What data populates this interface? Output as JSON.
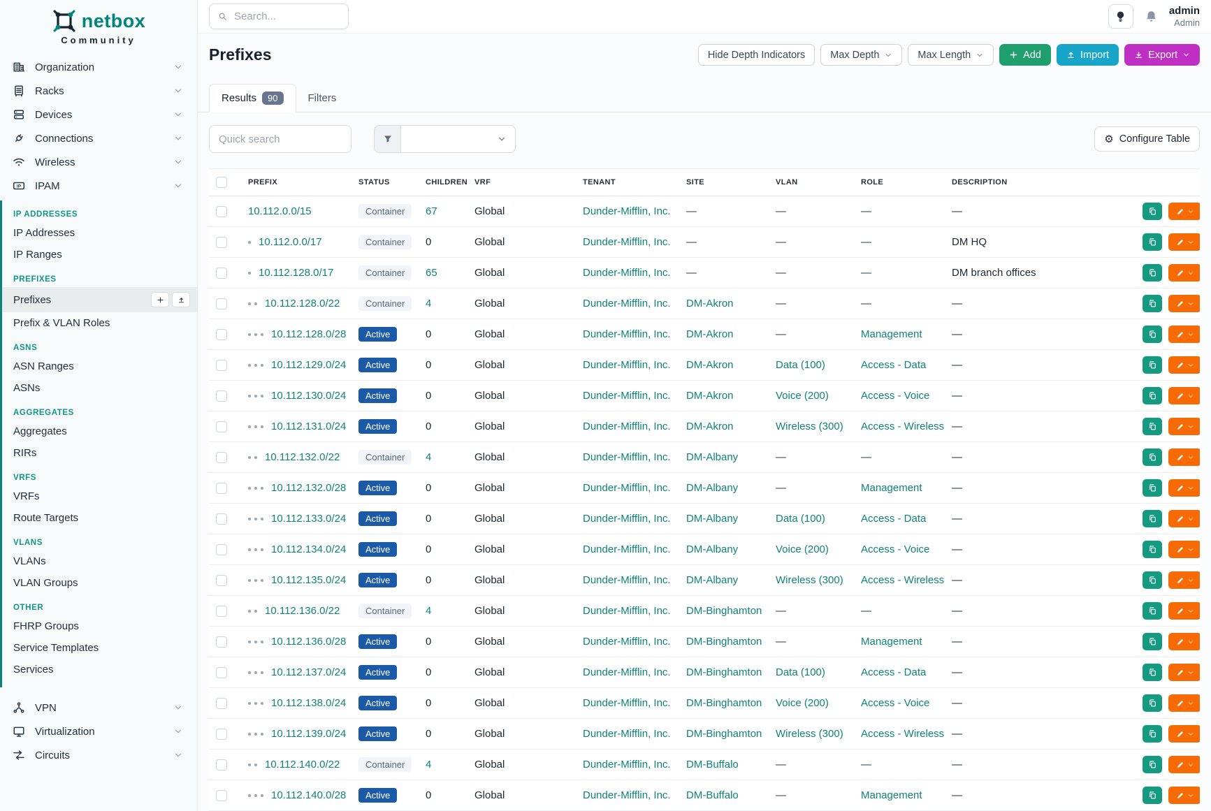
{
  "brand": {
    "name": "netbox",
    "subtitle": "Community"
  },
  "topbar": {
    "search_placeholder": "Search...",
    "user_name": "admin",
    "user_role": "Admin"
  },
  "sidebar": {
    "items_top": [
      {
        "label": "Organization",
        "icon": "building-icon"
      },
      {
        "label": "Racks",
        "icon": "rack-icon"
      },
      {
        "label": "Devices",
        "icon": "server-icon"
      },
      {
        "label": "Connections",
        "icon": "plug-icon"
      },
      {
        "label": "Wireless",
        "icon": "wifi-icon"
      },
      {
        "label": "IPAM",
        "icon": "ipam-icon"
      }
    ],
    "ipam_groups": [
      {
        "header": "IP ADDRESSES",
        "items": [
          "IP Addresses",
          "IP Ranges"
        ]
      },
      {
        "header": "PREFIXES",
        "items": [
          "Prefixes",
          "Prefix & VLAN Roles"
        ],
        "active_item": "Prefixes"
      },
      {
        "header": "ASNS",
        "items": [
          "ASN Ranges",
          "ASNs"
        ]
      },
      {
        "header": "AGGREGATES",
        "items": [
          "Aggregates",
          "RIRs"
        ]
      },
      {
        "header": "VRFS",
        "items": [
          "VRFs",
          "Route Targets"
        ]
      },
      {
        "header": "VLANS",
        "items": [
          "VLANs",
          "VLAN Groups"
        ]
      },
      {
        "header": "OTHER",
        "items": [
          "FHRP Groups",
          "Service Templates",
          "Services"
        ]
      }
    ],
    "items_bottom": [
      {
        "label": "VPN",
        "icon": "vpn-icon"
      },
      {
        "label": "Virtualization",
        "icon": "monitor-icon"
      },
      {
        "label": "Circuits",
        "icon": "circuits-icon"
      }
    ]
  },
  "page": {
    "title": "Prefixes",
    "toolbar": {
      "hide_depth": "Hide Depth Indicators",
      "max_depth": "Max Depth",
      "max_length": "Max Length",
      "add": "Add",
      "import": "Import",
      "export": "Export"
    },
    "tabs": [
      {
        "label": "Results",
        "badge": "90"
      },
      {
        "label": "Filters"
      }
    ],
    "quick_search_placeholder": "Quick search",
    "configure_table": "Configure Table"
  },
  "table": {
    "headers": [
      "PREFIX",
      "STATUS",
      "CHILDREN",
      "VRF",
      "TENANT",
      "SITE",
      "VLAN",
      "ROLE",
      "DESCRIPTION"
    ],
    "rows": [
      {
        "prefix": "10.112.0.0/15",
        "depth": 0,
        "status": "Container",
        "children": "67",
        "children_link": true,
        "vrf": "Global",
        "tenant": "Dunder-Mifflin, Inc.",
        "site": "—",
        "vlan": "—",
        "role": "—",
        "description": "—"
      },
      {
        "prefix": "10.112.0.0/17",
        "depth": 1,
        "status": "Container",
        "children": "0",
        "children_link": false,
        "vrf": "Global",
        "tenant": "Dunder-Mifflin, Inc.",
        "site": "—",
        "vlan": "—",
        "role": "—",
        "description": "DM HQ"
      },
      {
        "prefix": "10.112.128.0/17",
        "depth": 1,
        "status": "Container",
        "children": "65",
        "children_link": true,
        "vrf": "Global",
        "tenant": "Dunder-Mifflin, Inc.",
        "site": "—",
        "vlan": "—",
        "role": "—",
        "description": "DM branch offices"
      },
      {
        "prefix": "10.112.128.0/22",
        "depth": 2,
        "status": "Container",
        "children": "4",
        "children_link": true,
        "vrf": "Global",
        "tenant": "Dunder-Mifflin, Inc.",
        "site": "DM-Akron",
        "vlan": "—",
        "role": "—",
        "description": "—"
      },
      {
        "prefix": "10.112.128.0/28",
        "depth": 3,
        "status": "Active",
        "children": "0",
        "children_link": false,
        "vrf": "Global",
        "tenant": "Dunder-Mifflin, Inc.",
        "site": "DM-Akron",
        "vlan": "—",
        "role": "Management",
        "description": "—"
      },
      {
        "prefix": "10.112.129.0/24",
        "depth": 3,
        "status": "Active",
        "children": "0",
        "children_link": false,
        "vrf": "Global",
        "tenant": "Dunder-Mifflin, Inc.",
        "site": "DM-Akron",
        "vlan": "Data (100)",
        "role": "Access - Data",
        "description": "—"
      },
      {
        "prefix": "10.112.130.0/24",
        "depth": 3,
        "status": "Active",
        "children": "0",
        "children_link": false,
        "vrf": "Global",
        "tenant": "Dunder-Mifflin, Inc.",
        "site": "DM-Akron",
        "vlan": "Voice (200)",
        "role": "Access - Voice",
        "description": "—"
      },
      {
        "prefix": "10.112.131.0/24",
        "depth": 3,
        "status": "Active",
        "children": "0",
        "children_link": false,
        "vrf": "Global",
        "tenant": "Dunder-Mifflin, Inc.",
        "site": "DM-Akron",
        "vlan": "Wireless (300)",
        "role": "Access - Wireless",
        "description": "—"
      },
      {
        "prefix": "10.112.132.0/22",
        "depth": 2,
        "status": "Container",
        "children": "4",
        "children_link": true,
        "vrf": "Global",
        "tenant": "Dunder-Mifflin, Inc.",
        "site": "DM-Albany",
        "vlan": "—",
        "role": "—",
        "description": "—"
      },
      {
        "prefix": "10.112.132.0/28",
        "depth": 3,
        "status": "Active",
        "children": "0",
        "children_link": false,
        "vrf": "Global",
        "tenant": "Dunder-Mifflin, Inc.",
        "site": "DM-Albany",
        "vlan": "—",
        "role": "Management",
        "description": "—"
      },
      {
        "prefix": "10.112.133.0/24",
        "depth": 3,
        "status": "Active",
        "children": "0",
        "children_link": false,
        "vrf": "Global",
        "tenant": "Dunder-Mifflin, Inc.",
        "site": "DM-Albany",
        "vlan": "Data (100)",
        "role": "Access - Data",
        "description": "—"
      },
      {
        "prefix": "10.112.134.0/24",
        "depth": 3,
        "status": "Active",
        "children": "0",
        "children_link": false,
        "vrf": "Global",
        "tenant": "Dunder-Mifflin, Inc.",
        "site": "DM-Albany",
        "vlan": "Voice (200)",
        "role": "Access - Voice",
        "description": "—"
      },
      {
        "prefix": "10.112.135.0/24",
        "depth": 3,
        "status": "Active",
        "children": "0",
        "children_link": false,
        "vrf": "Global",
        "tenant": "Dunder-Mifflin, Inc.",
        "site": "DM-Albany",
        "vlan": "Wireless (300)",
        "role": "Access - Wireless",
        "description": "—"
      },
      {
        "prefix": "10.112.136.0/22",
        "depth": 2,
        "status": "Container",
        "children": "4",
        "children_link": true,
        "vrf": "Global",
        "tenant": "Dunder-Mifflin, Inc.",
        "site": "DM-Binghamton",
        "vlan": "—",
        "role": "—",
        "description": "—"
      },
      {
        "prefix": "10.112.136.0/28",
        "depth": 3,
        "status": "Active",
        "children": "0",
        "children_link": false,
        "vrf": "Global",
        "tenant": "Dunder-Mifflin, Inc.",
        "site": "DM-Binghamton",
        "vlan": "—",
        "role": "Management",
        "description": "—"
      },
      {
        "prefix": "10.112.137.0/24",
        "depth": 3,
        "status": "Active",
        "children": "0",
        "children_link": false,
        "vrf": "Global",
        "tenant": "Dunder-Mifflin, Inc.",
        "site": "DM-Binghamton",
        "vlan": "Data (100)",
        "role": "Access - Data",
        "description": "—"
      },
      {
        "prefix": "10.112.138.0/24",
        "depth": 3,
        "status": "Active",
        "children": "0",
        "children_link": false,
        "vrf": "Global",
        "tenant": "Dunder-Mifflin, Inc.",
        "site": "DM-Binghamton",
        "vlan": "Voice (200)",
        "role": "Access - Voice",
        "description": "—"
      },
      {
        "prefix": "10.112.139.0/24",
        "depth": 3,
        "status": "Active",
        "children": "0",
        "children_link": false,
        "vrf": "Global",
        "tenant": "Dunder-Mifflin, Inc.",
        "site": "DM-Binghamton",
        "vlan": "Wireless (300)",
        "role": "Access - Wireless",
        "description": "—"
      },
      {
        "prefix": "10.112.140.0/22",
        "depth": 2,
        "status": "Container",
        "children": "4",
        "children_link": true,
        "vrf": "Global",
        "tenant": "Dunder-Mifflin, Inc.",
        "site": "DM-Buffalo",
        "vlan": "—",
        "role": "—",
        "description": "—"
      },
      {
        "prefix": "10.112.140.0/28",
        "depth": 3,
        "status": "Active",
        "children": "0",
        "children_link": false,
        "vrf": "Global",
        "tenant": "Dunder-Mifflin, Inc.",
        "site": "DM-Buffalo",
        "vlan": "—",
        "role": "Management",
        "description": "—"
      }
    ]
  },
  "colors": {
    "brand_teal": "#00857e",
    "link_teal": "#0e837b",
    "sidebar_group_header": "#12948a",
    "status_active_badge": "#1b5aa6",
    "status_container_badge_bg": "#f1f4f8",
    "add_button": "#1f9e6e",
    "import_button": "#17a6c9",
    "export_button": "#bf2fc4",
    "copy_button": "#149a80",
    "edit_button": "#f76b07"
  }
}
